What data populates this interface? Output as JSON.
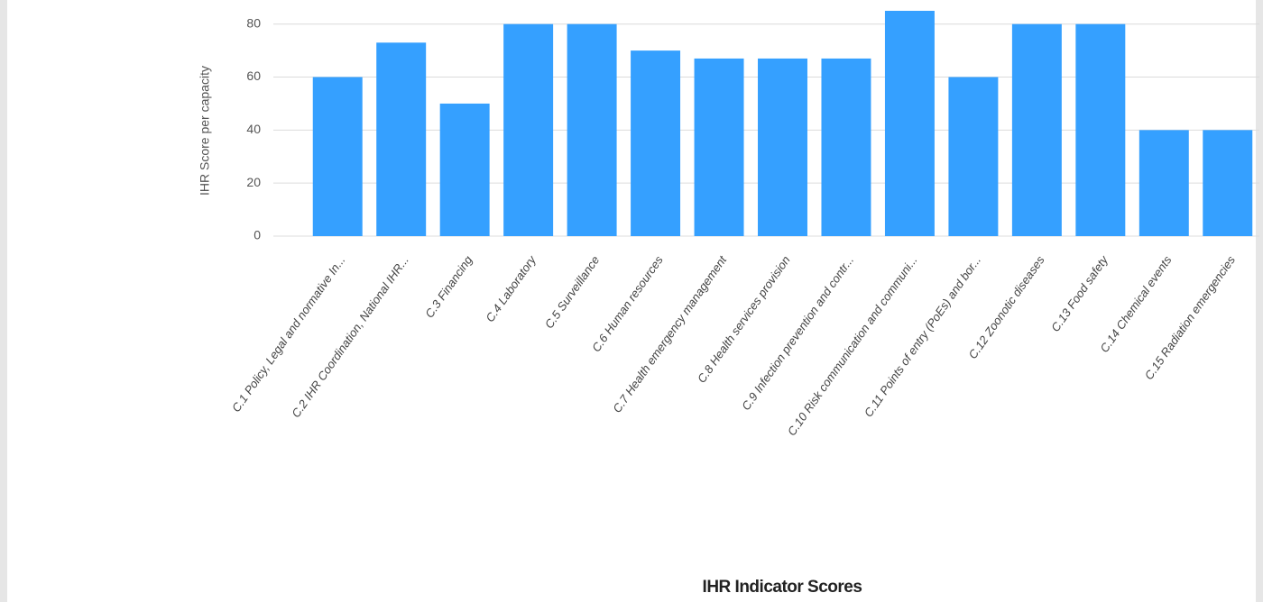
{
  "chart_data": {
    "type": "bar",
    "title": "IHR Indicator Scores",
    "y_label": "IHR Score per capacity",
    "categories": [
      "C.1 Policy, Legal and normative In...",
      "C.2 IHR Coordination, National IHR...",
      "C.3 Financing",
      "C.4 Laboratory",
      "C.5 Surveillance",
      "C.6 Human resources",
      "C.7 Health emergency management",
      "C.8 Health services provision",
      "C.9 Infection prevention and contr...",
      "C.10 Risk communication and communi...",
      "C.11 Points of entry (PoEs) and bor...",
      "C.12 Zoonotic diseases",
      "C.13 Food safety",
      "C.14 Chemical events",
      "C.15 Radiation emergencies"
    ],
    "values": [
      60,
      73,
      50,
      80,
      80,
      70,
      67,
      67,
      67,
      85,
      60,
      80,
      80,
      40,
      40
    ],
    "color": "#35a0ff",
    "ylim": [
      0,
      85
    ],
    "yticks": [
      0,
      20,
      40,
      60,
      80
    ],
    "grid": true
  }
}
